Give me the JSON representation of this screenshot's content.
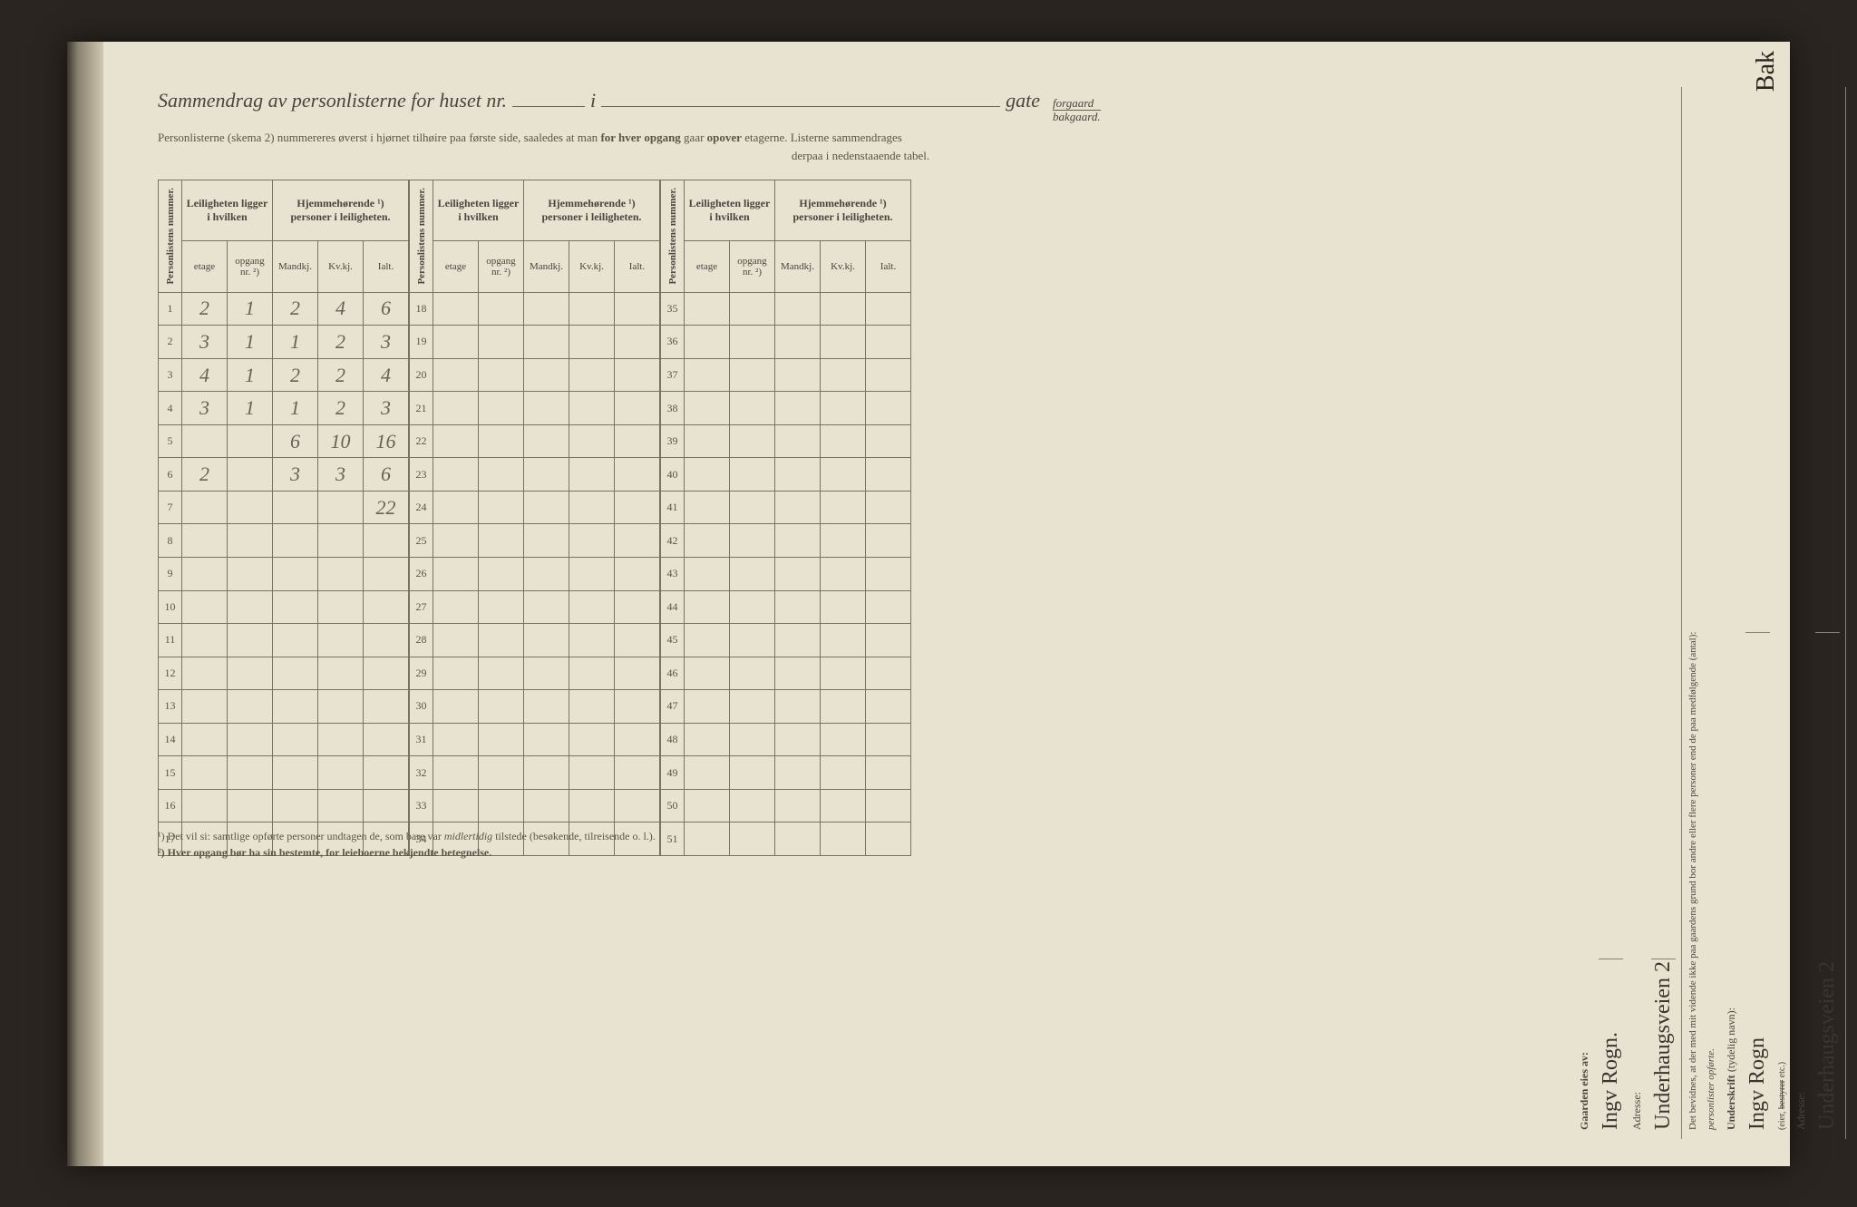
{
  "title": {
    "prefix": "Sammendrag av personlisterne for huset nr.",
    "mid": "i",
    "suffix": "gate",
    "forgaard": "forgaard",
    "bakgaard": "bakgaard."
  },
  "subtitle1_a": "Personlisterne (skema 2) nummereres øverst i hjørnet tilhøire paa første side, saaledes at man ",
  "subtitle1_b": "for hver opgang",
  "subtitle1_c": " gaar ",
  "subtitle1_d": "opover",
  "subtitle1_e": " etagerne.   Listerne sammendrages",
  "subtitle2": "derpaa i nedenstaaende tabel.",
  "headers": {
    "personlist": "Personlistens nummer.",
    "leilighet": "Leiligheten ligger i hvilken",
    "hjemme": "Hjemmehørende ¹) personer i leiligheten.",
    "etage": "etage",
    "opgang": "opgang nr. ²)",
    "mandkj": "Mandkj.",
    "kvkj": "Kv.kj.",
    "ialt": "Ialt."
  },
  "rows": [
    {
      "n": "1",
      "etage": "2",
      "opgang": "1",
      "m": "2",
      "k": "4",
      "i": "6"
    },
    {
      "n": "2",
      "etage": "3",
      "opgang": "1",
      "m": "1",
      "k": "2",
      "i": "3"
    },
    {
      "n": "3",
      "etage": "4",
      "opgang": "1",
      "m": "2",
      "k": "2",
      "i": "4"
    },
    {
      "n": "4",
      "etage": "3",
      "opgang": "1",
      "m": "1",
      "k": "2",
      "i": "3"
    },
    {
      "n": "5",
      "etage": "",
      "opgang": "",
      "m": "6",
      "k": "10",
      "i": "16"
    },
    {
      "n": "6",
      "etage": "2",
      "opgang": "",
      "m": "3",
      "k": "3",
      "i": "6"
    },
    {
      "n": "7",
      "etage": "",
      "opgang": "",
      "m": "",
      "k": "",
      "i": "22"
    },
    {
      "n": "8",
      "etage": "",
      "opgang": "",
      "m": "",
      "k": "",
      "i": ""
    },
    {
      "n": "9",
      "etage": "",
      "opgang": "",
      "m": "",
      "k": "",
      "i": ""
    },
    {
      "n": "10",
      "etage": "",
      "opgang": "",
      "m": "",
      "k": "",
      "i": ""
    },
    {
      "n": "11",
      "etage": "",
      "opgang": "",
      "m": "",
      "k": "",
      "i": ""
    },
    {
      "n": "12",
      "etage": "",
      "opgang": "",
      "m": "",
      "k": "",
      "i": ""
    },
    {
      "n": "13",
      "etage": "",
      "opgang": "",
      "m": "",
      "k": "",
      "i": ""
    },
    {
      "n": "14",
      "etage": "",
      "opgang": "",
      "m": "",
      "k": "",
      "i": ""
    },
    {
      "n": "15",
      "etage": "",
      "opgang": "",
      "m": "",
      "k": "",
      "i": ""
    },
    {
      "n": "16",
      "etage": "",
      "opgang": "",
      "m": "",
      "k": "",
      "i": ""
    },
    {
      "n": "17",
      "etage": "",
      "opgang": "",
      "m": "",
      "k": "",
      "i": ""
    }
  ],
  "rows2_start": 18,
  "rows3_start": 35,
  "footnote1_a": "¹) Det vil si: samtlige opførte personer undtagen de, som bare var ",
  "footnote1_b": "midlertidig",
  "footnote1_c": " tilstede (besøkende, tilreisende o. l.).",
  "footnote2": "²) Hver opgang bør ha sin bestemte, for leieboerne bekjendte betegnelse.",
  "side": {
    "gaarden_label": "Gaarden eies av:",
    "owner_name": "Ingv Rogn.",
    "adresse_label": "Adresse:",
    "adresse_value": "Underhaugsveien 2",
    "bevidnes": "Det bevidnes, at der med mit vidende ikke paa gaardens grund bor andre eller flere personer end de paa medfølgende (antal):",
    "personlister": "personlister opførte.",
    "underskrift_label": "Underskrift",
    "tydelig": "(tydelig navn):",
    "underskrift_value": "Ingv Rogn",
    "eier_note": "(eier, ",
    "bestyrer": "bestyrer",
    "etc": " etc.)",
    "adresse2_value": "Underhaugsveien 2"
  },
  "corner": "Bak",
  "colors": {
    "paper": "#e8e2d0",
    "ink": "#4a4540",
    "border": "#7a7260",
    "handwriting": "#6a6258"
  }
}
